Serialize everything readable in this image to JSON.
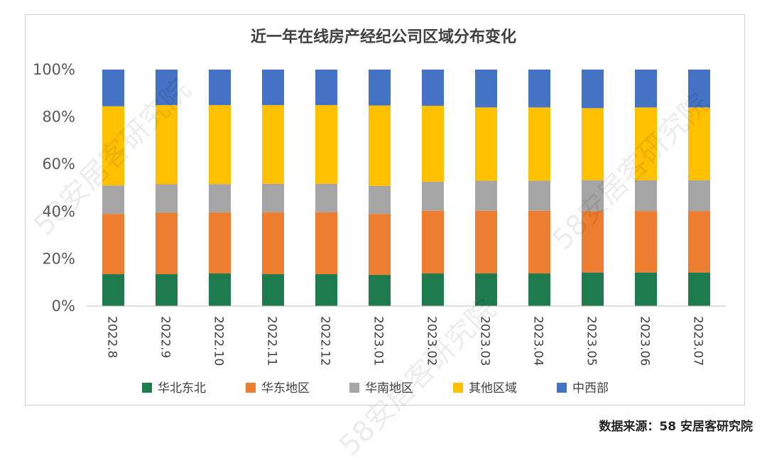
{
  "chart_data": {
    "type": "bar",
    "stacked": true,
    "title": "近一年在线房产经纪公司区域分布变化",
    "categories": [
      "2022.8",
      "2022.9",
      "2022.10",
      "2022.11",
      "2022.12",
      "2023.01",
      "2023.02",
      "2023.03",
      "2023.04",
      "2023.05",
      "2023.06",
      "2023.07"
    ],
    "yticks": [
      "0%",
      "20%",
      "40%",
      "60%",
      "80%",
      "100%"
    ],
    "ylim": [
      0,
      100
    ],
    "legend_position": "bottom",
    "series": [
      {
        "name": "华北东北",
        "color": "#1e7b4e",
        "values": [
          13.5,
          13.5,
          13.8,
          13.5,
          13.5,
          13.2,
          13.8,
          13.8,
          13.8,
          14.2,
          14.2,
          14.2
        ]
      },
      {
        "name": "华东地区",
        "color": "#ed7d31",
        "values": [
          25.5,
          26.0,
          25.8,
          26.2,
          26.2,
          25.8,
          26.5,
          26.5,
          26.5,
          26.0,
          26.0,
          26.0
        ]
      },
      {
        "name": "华南地区",
        "color": "#a5a5a5",
        "values": [
          12.0,
          12.0,
          12.0,
          12.0,
          12.0,
          11.8,
          12.3,
          12.7,
          12.7,
          13.0,
          13.0,
          13.0
        ]
      },
      {
        "name": "其他区域",
        "color": "#ffc000",
        "values": [
          33.5,
          33.5,
          33.4,
          33.3,
          33.3,
          34.0,
          32.1,
          31.0,
          31.0,
          30.5,
          30.8,
          30.8
        ]
      },
      {
        "name": "中西部",
        "color": "#4472c4",
        "values": [
          15.5,
          15.0,
          15.0,
          15.0,
          15.0,
          15.2,
          15.3,
          16.0,
          16.0,
          16.3,
          16.0,
          16.0
        ]
      }
    ]
  },
  "source": "数据来源：58 安居客研究院",
  "watermark_text": "58安居客研究院"
}
